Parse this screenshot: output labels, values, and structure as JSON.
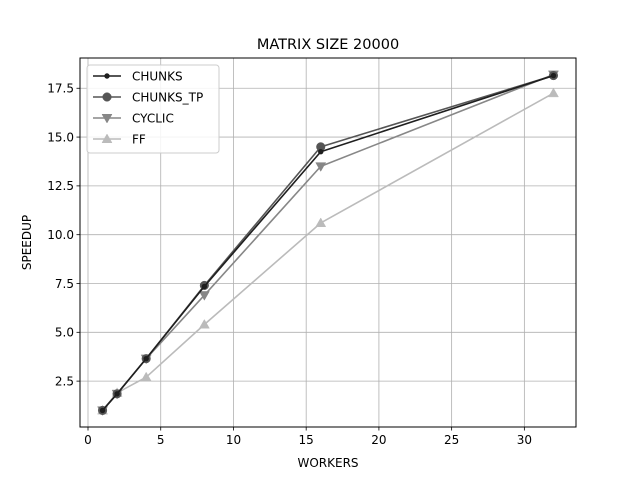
{
  "chart_data": {
    "type": "line",
    "title": "MATRIX SIZE 20000",
    "xlabel": "WORKERS",
    "ylabel": "SPEEDUP",
    "xlim": [
      -0.55,
      33.55
    ],
    "ylim": [
      0.15,
      19.05
    ],
    "xticks": [
      0,
      5,
      10,
      15,
      20,
      25,
      30
    ],
    "xtick_labels": [
      "0",
      "5",
      "10",
      "15",
      "20",
      "25",
      "30"
    ],
    "yticks": [
      2.5,
      5.0,
      7.5,
      10.0,
      12.5,
      15.0,
      17.5
    ],
    "ytick_labels": [
      "2.5",
      "5.0",
      "7.5",
      "10.0",
      "12.5",
      "15.0",
      "17.5"
    ],
    "grid": true,
    "legend_position": "upper-left",
    "x": [
      1,
      2,
      4,
      8,
      16,
      32
    ],
    "series": [
      {
        "name": "CHUNKS",
        "values": [
          1.0,
          1.85,
          3.65,
          7.35,
          14.25,
          18.15
        ],
        "color": "#1f1f1f",
        "marker": "dot"
      },
      {
        "name": "CHUNKS_TP",
        "values": [
          1.0,
          1.85,
          3.65,
          7.4,
          14.5,
          18.15
        ],
        "color": "#555555",
        "marker": "circle"
      },
      {
        "name": "CYCLIC",
        "values": [
          1.0,
          1.85,
          3.65,
          6.9,
          13.5,
          18.2
        ],
        "color": "#878787",
        "marker": "triangle-down"
      },
      {
        "name": "FF",
        "values": [
          1.0,
          1.9,
          2.7,
          5.4,
          10.6,
          17.25
        ],
        "color": "#bbbbbb",
        "marker": "triangle-up"
      }
    ]
  }
}
